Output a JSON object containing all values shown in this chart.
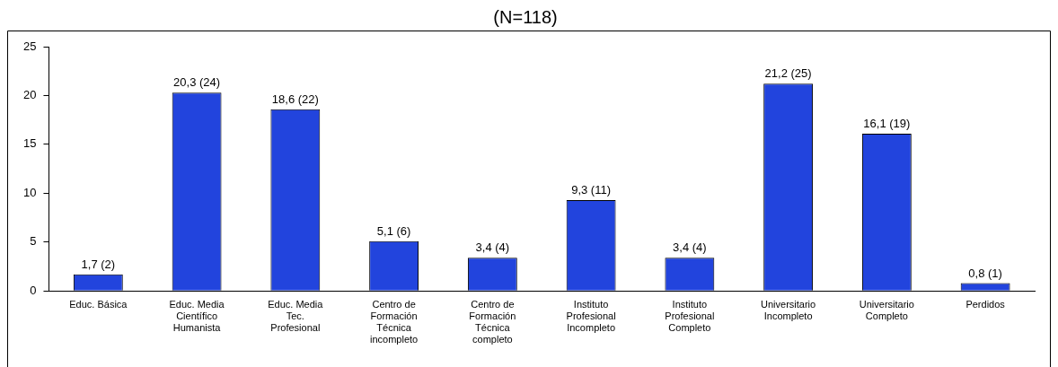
{
  "chart_data": {
    "type": "bar",
    "title": "(N=118)",
    "categories": [
      "Educ. Básica",
      "Educ. Media\nCientífico\nHumanista",
      "Educ. Media\nTec.\nProfesional",
      "Centro de\nFormación\nTécnica\nincompleto",
      "Centro de\nFormación\nTécnica\ncompleto",
      "Instituto\nProfesional\nIncompleto",
      "Instituto\nProfesional\nCompleto",
      "Universitario\nIncompleto",
      "Universitario\nCompleto",
      "Perdidos"
    ],
    "values": [
      1.7,
      20.3,
      18.6,
      5.1,
      3.4,
      9.3,
      3.4,
      21.2,
      16.1,
      0.8
    ],
    "value_labels": [
      "1,7 (2)",
      "20,3 (24)",
      "18,6 (22)",
      "5,1 (6)",
      "3,4 (4)",
      "9,3 (11)",
      "3,4 (4)",
      "21,2 (25)",
      "16,1 (19)",
      "0,8 (1)"
    ],
    "color": "#2244dd",
    "ylim": [
      0,
      25
    ],
    "yticks": [
      0,
      5,
      10,
      15,
      20,
      25
    ],
    "grid": false,
    "legend": false
  }
}
